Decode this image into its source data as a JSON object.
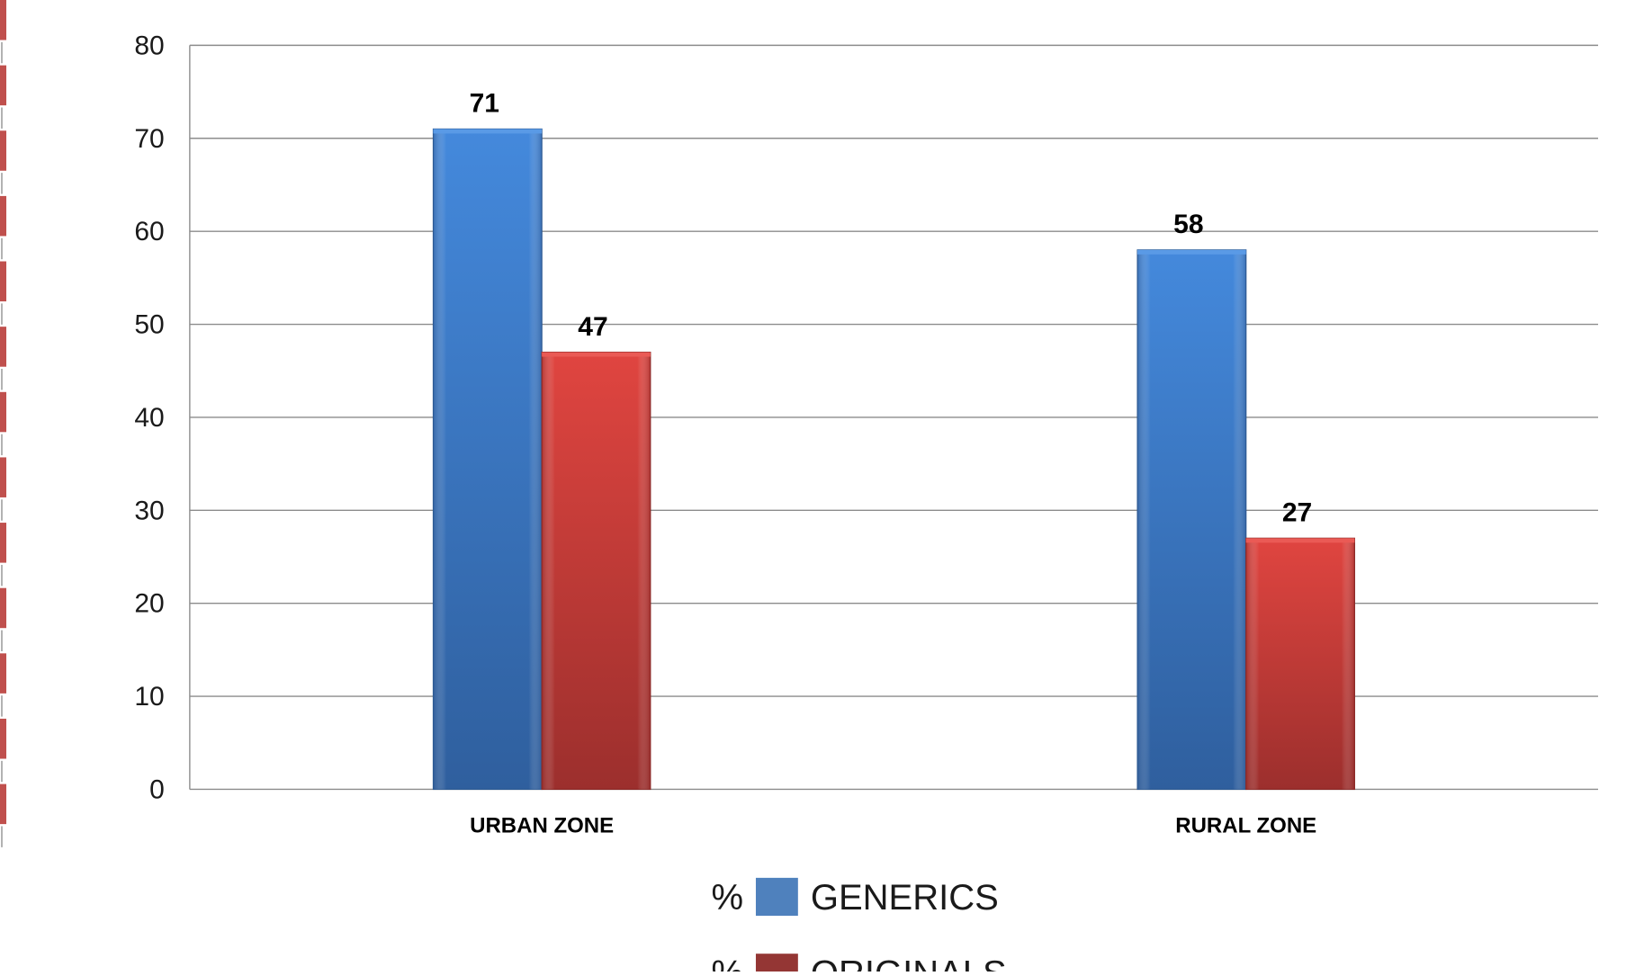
{
  "chart_data": {
    "type": "bar",
    "categories": [
      "URBAN ZONE",
      "RURAL ZONE"
    ],
    "series": [
      {
        "name": "GENERICS",
        "prefix": "%",
        "values": [
          71,
          58
        ],
        "color": "#3f7fd0",
        "legend_color": "#4f81bd"
      },
      {
        "name": "ORIGINALS",
        "prefix": "%",
        "values": [
          47,
          27
        ],
        "color": "#cc3e3a",
        "legend_color": "#943634"
      }
    ],
    "ylim": [
      0,
      80
    ],
    "yticks": [
      0,
      10,
      20,
      30,
      40,
      50,
      60,
      70,
      80
    ],
    "grid": true,
    "legend_position": "bottom",
    "left_border_color": "#c0504d"
  }
}
